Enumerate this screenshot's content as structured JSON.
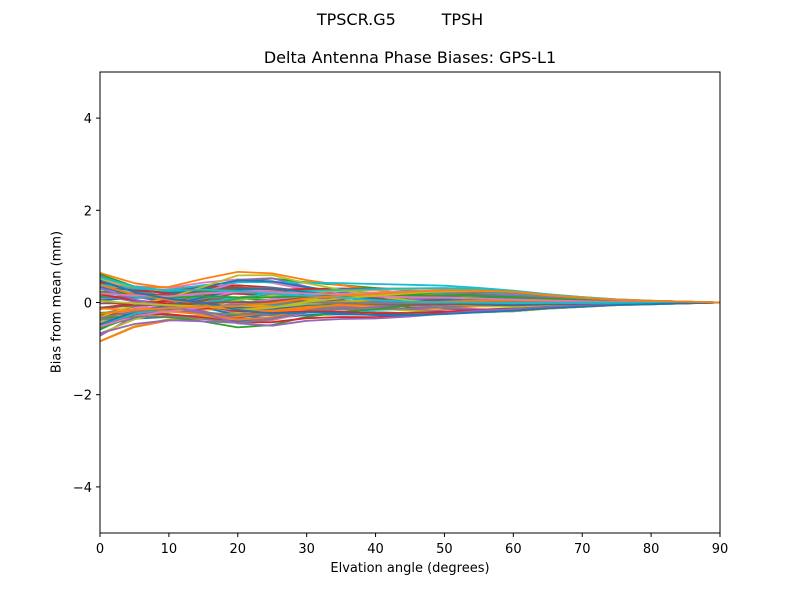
{
  "figure": {
    "suptitle": "TPSCR.G5         TPSH",
    "title": "Delta Antenna Phase Biases: GPS-L1",
    "xlabel": "Elvation angle (degrees)",
    "ylabel": "Bias from mean (mm)"
  },
  "chart_data": {
    "type": "line",
    "title": "Delta Antenna Phase Biases: GPS-L1",
    "suptitle": "TPSCR.G5         TPSH",
    "xlabel": "Elvation angle (degrees)",
    "ylabel": "Bias from mean (mm)",
    "xlim": [
      0,
      90
    ],
    "ylim": [
      -5,
      5
    ],
    "xticks": [
      0,
      10,
      20,
      30,
      40,
      50,
      60,
      70,
      80,
      90
    ],
    "yticks": [
      -4,
      -2,
      0,
      2,
      4
    ],
    "grid": false,
    "legend": "none",
    "series_count_approx": 72,
    "x_samples": [
      0,
      5,
      10,
      15,
      20,
      25,
      30,
      35,
      40,
      45,
      50,
      55,
      60,
      65,
      70,
      75,
      80,
      85,
      90
    ],
    "envelope": {
      "upper": [
        0.65,
        0.5,
        0.45,
        0.6,
        0.7,
        0.68,
        0.6,
        0.55,
        0.5,
        0.45,
        0.4,
        0.33,
        0.26,
        0.18,
        0.12,
        0.07,
        0.04,
        0.02,
        0.0
      ],
      "lower": [
        -0.85,
        -0.6,
        -0.5,
        -0.55,
        -0.6,
        -0.55,
        -0.45,
        -0.42,
        -0.42,
        -0.38,
        -0.32,
        -0.25,
        -0.2,
        -0.14,
        -0.1,
        -0.06,
        -0.04,
        -0.02,
        0.0
      ]
    },
    "colors": [
      "#1f77b4",
      "#ff7f0e",
      "#2ca02c",
      "#d62728",
      "#9467bd",
      "#8c564b",
      "#e377c2",
      "#7f7f7f",
      "#bcbd22",
      "#17becf"
    ]
  }
}
